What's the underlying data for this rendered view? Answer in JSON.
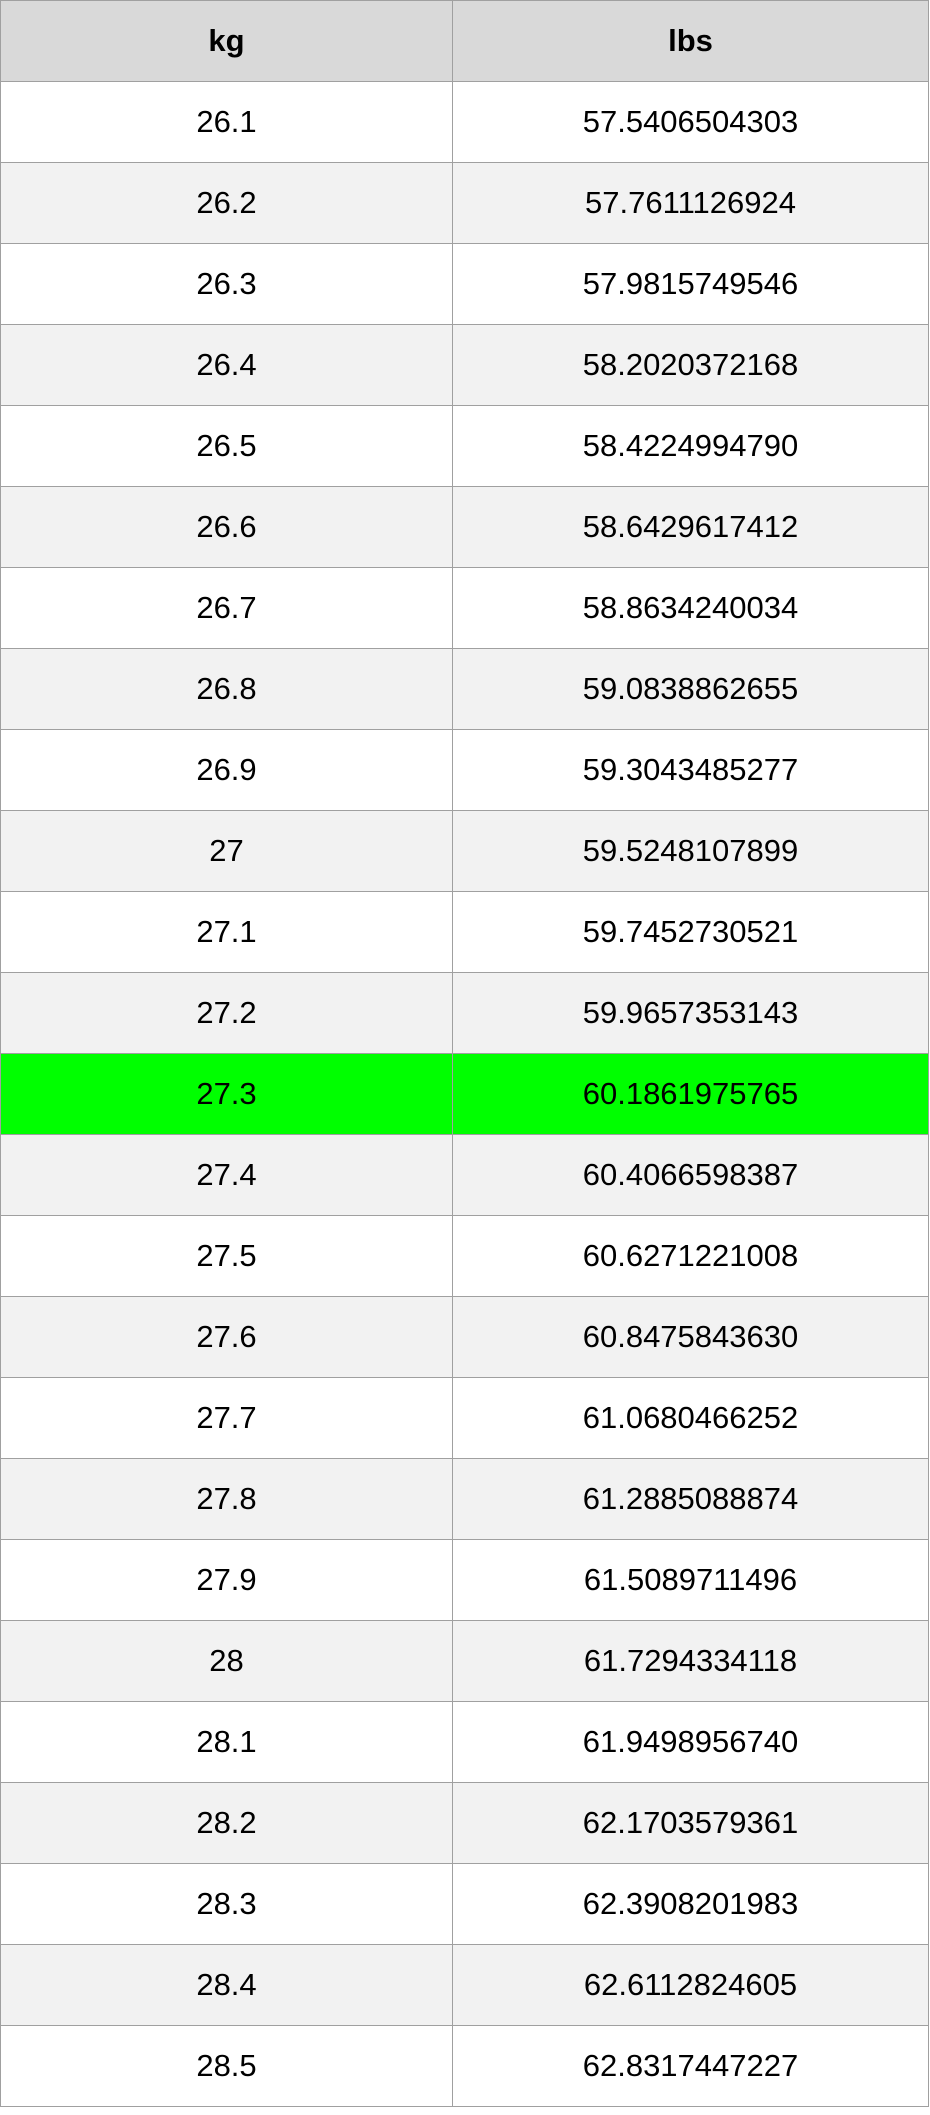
{
  "table": {
    "header": [
      "kg",
      "lbs"
    ],
    "rows": [
      [
        "26.1",
        "57.5406504303"
      ],
      [
        "26.2",
        "57.7611126924"
      ],
      [
        "26.3",
        "57.9815749546"
      ],
      [
        "26.4",
        "58.2020372168"
      ],
      [
        "26.5",
        "58.4224994790"
      ],
      [
        "26.6",
        "58.6429617412"
      ],
      [
        "26.7",
        "58.8634240034"
      ],
      [
        "26.8",
        "59.0838862655"
      ],
      [
        "26.9",
        "59.3043485277"
      ],
      [
        "27",
        "59.5248107899"
      ],
      [
        "27.1",
        "59.7452730521"
      ],
      [
        "27.2",
        "59.9657353143"
      ],
      [
        "27.3",
        "60.1861975765"
      ],
      [
        "27.4",
        "60.4066598387"
      ],
      [
        "27.5",
        "60.6271221008"
      ],
      [
        "27.6",
        "60.8475843630"
      ],
      [
        "27.7",
        "61.0680466252"
      ],
      [
        "27.8",
        "61.2885088874"
      ],
      [
        "27.9",
        "61.5089711496"
      ],
      [
        "28",
        "61.7294334118"
      ],
      [
        "28.1",
        "61.9498956740"
      ],
      [
        "28.2",
        "62.1703579361"
      ],
      [
        "28.3",
        "62.3908201983"
      ],
      [
        "28.4",
        "62.6112824605"
      ],
      [
        "28.5",
        "62.8317447227"
      ]
    ]
  }
}
